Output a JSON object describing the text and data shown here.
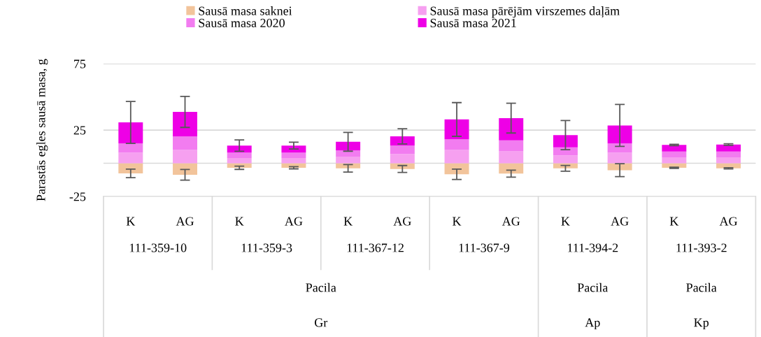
{
  "chart_data": {
    "type": "bar",
    "stacked": true,
    "ylabel": "Parastās egles sausā masa, g",
    "categories": [
      "K",
      "AG",
      "K",
      "AG",
      "K",
      "AG",
      "K",
      "AG",
      "K",
      "AG",
      "K",
      "AG"
    ],
    "series": [
      {
        "name": "Sausā masa saknei",
        "color": "#f2c49b",
        "values": [
          -7.6,
          -8.7,
          -3.4,
          -3.4,
          -3.8,
          -4.3,
          -8.3,
          -7.8,
          -3.8,
          -5.2,
          -3.4,
          -3.8
        ],
        "errors": [
          3.2,
          4,
          1.2,
          0.8,
          2.8,
          2.6,
          3.9,
          2.6,
          2.2,
          4.9,
          0.4,
          0.5
        ]
      },
      {
        "name": "Sausā masa pārējām virszemes daļām",
        "color": "#f6a0f0",
        "values": [
          8,
          10,
          4,
          4,
          5,
          7,
          10,
          9,
          6,
          8,
          4.5,
          4.5
        ]
      },
      {
        "name": "Sausā masa 2020",
        "color": "#f27cf0",
        "values": [
          7,
          10.3,
          4,
          4,
          4.7,
          6.3,
          8,
          8.3,
          6,
          7,
          4.3,
          4.3
        ]
      },
      {
        "name": "Sausā masa 2021",
        "color": "#ee00e6",
        "values": [
          15.8,
          18.4,
          5.3,
          5.3,
          6.5,
          7,
          15,
          16.7,
          9.2,
          13.5,
          5,
          5.3
        ],
        "errors": [
          15.8,
          11.7,
          4.3,
          2.6,
          7.1,
          5.7,
          12.7,
          11.2,
          11,
          15.8,
          0.5,
          0.6
        ]
      }
    ],
    "ylim": [
      -25,
      75
    ],
    "yticks": [
      -25,
      25,
      75
    ],
    "grid": "y",
    "legend": "top",
    "ref_lines": [
      {
        "axis": "y",
        "value": 0,
        "label": null,
        "color": "#d9d9d9"
      }
    ],
    "annotations": [
      "111-359-10",
      "111-359-3",
      "111-367-12",
      "111-367-9",
      "111-394-2",
      "111-393-2",
      "Pacila",
      "Pacila",
      "Pacila",
      "Gr",
      "Ap",
      "Kp"
    ]
  }
}
